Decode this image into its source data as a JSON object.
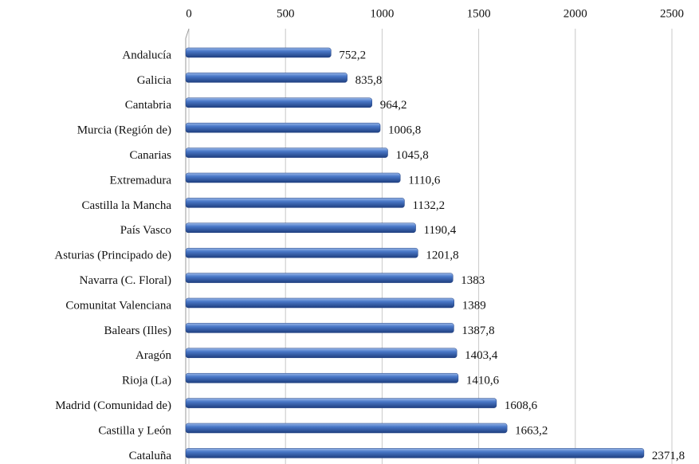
{
  "chart_data": {
    "type": "bar",
    "orientation": "horizontal",
    "categories": [
      "Andalucía",
      "Galicia",
      "Cantabria",
      "Murcia (Región de)",
      "Canarias",
      "Extremadura",
      "Castilla la Mancha",
      "País Vasco",
      "Asturias (Principado de)",
      "Navarra (C. Floral)",
      "Comunitat Valenciana",
      "Balears (Illes)",
      "Aragón",
      "Rioja (La)",
      "Madrid (Comunidad de)",
      "Castilla y León",
      "Cataluña"
    ],
    "values": [
      752.2,
      835.8,
      964.2,
      1006.8,
      1045.8,
      1110.6,
      1132.2,
      1190.4,
      1201.8,
      1383,
      1389,
      1387.8,
      1403.4,
      1410.6,
      1608.6,
      1663.2,
      2371.8
    ],
    "value_labels": [
      "752,2",
      "835,8",
      "964,2",
      "1006,8",
      "1045,8",
      "1110,6",
      "1132,2",
      "1190,4",
      "1201,8",
      "1383",
      "1389",
      "1387,8",
      "1403,4",
      "1410,6",
      "1608,6",
      "1663,2",
      "2371,8"
    ],
    "color": "#3b67b5",
    "xlim": [
      0,
      2500
    ],
    "xticks": [
      0,
      500,
      1000,
      1500,
      2000,
      2500
    ],
    "grid": true
  }
}
